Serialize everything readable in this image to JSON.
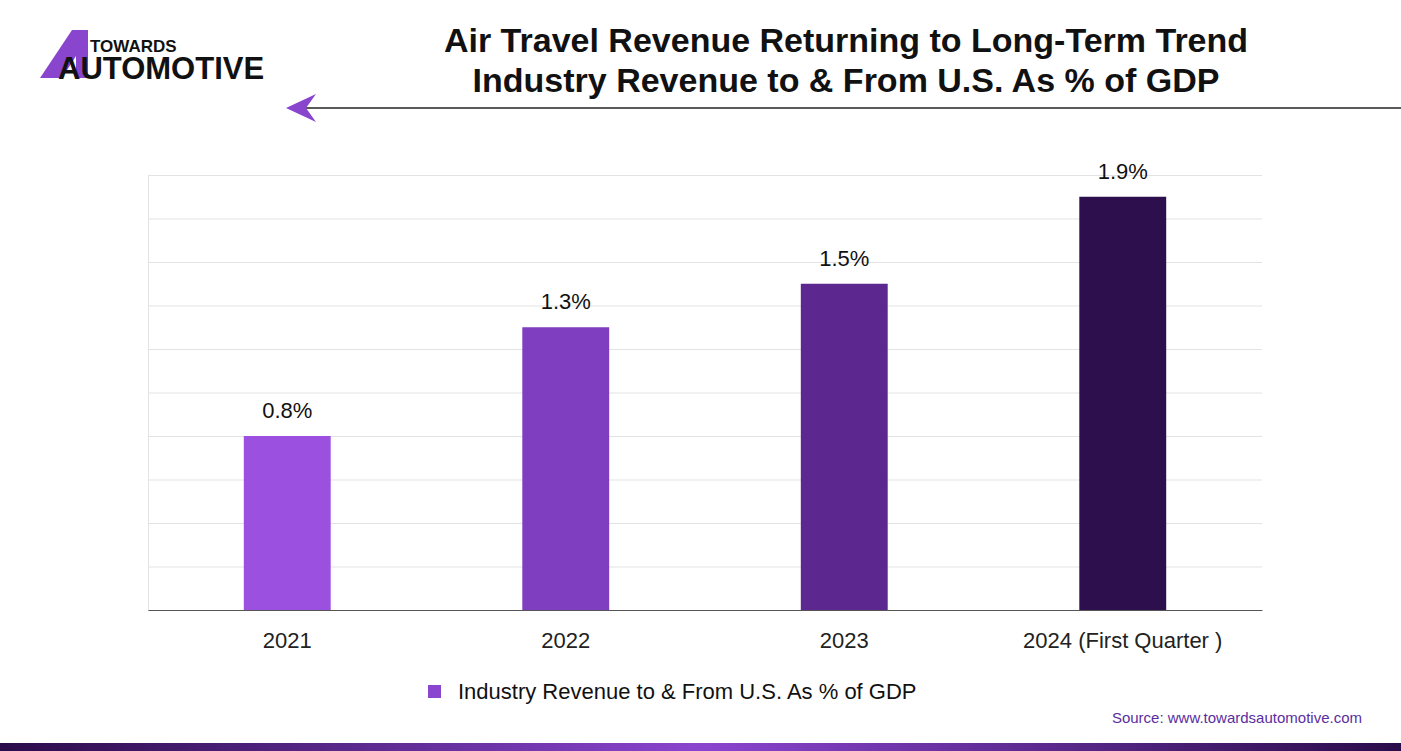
{
  "chart_data": {
    "type": "bar",
    "title": [
      "Air Travel Revenue Returning to Long-Term Trend",
      "Industry Revenue to & From U.S. As % of GDP"
    ],
    "logo_text": [
      "TOWARDS",
      "AUTOMOTIVE"
    ],
    "source": "Source: www.towardsautomotive.com",
    "categories": [
      "2021",
      "2022",
      "2023",
      "2024 (First Quarter )"
    ],
    "series": [
      {
        "name": "Industry Revenue to & From U.S. As % of GDP",
        "color": "#8b46d0",
        "colors": [
          "#9b50e0",
          "#7f3dc0",
          "#5c2890",
          "#2c0f4c"
        ],
        "values": [
          0.8,
          1.3,
          1.5,
          1.9
        ],
        "value_labels": [
          "0.8%",
          "1.3%",
          "1.5%",
          "1.9%"
        ]
      }
    ],
    "ylim": [
      0,
      2
    ],
    "yticks": [
      0,
      0.2,
      0.4,
      0.6,
      0.8,
      1,
      1.2,
      1.4,
      1.6,
      1.8,
      2
    ],
    "grid": true,
    "data_labels": true,
    "tick_labels": "x",
    "legend": "bottom"
  }
}
